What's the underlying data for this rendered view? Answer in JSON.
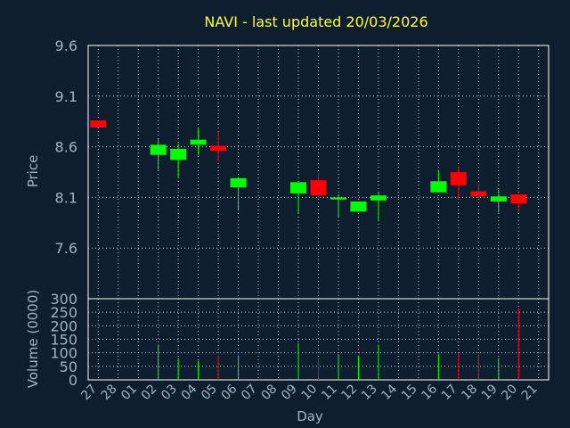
{
  "chart_data": {
    "type": "candlestick",
    "title": "NAVI - last updated 20/03/2026",
    "colors": {
      "background": "#0f1e2e",
      "up": "#00ff00",
      "down": "#ff0000",
      "text": "#9fb3c8",
      "title": "#ffff33",
      "grid": "#ffffff"
    },
    "price_panel": {
      "ylabel": "Price",
      "ylim": [
        7.1,
        9.6
      ],
      "yticks": [
        "9.6",
        "9.1",
        "8.6",
        "8.1",
        "7.6"
      ],
      "ytick_values": [
        9.6,
        9.1,
        8.6,
        8.1,
        7.6
      ],
      "grid": true
    },
    "volume_panel": {
      "ylabel": "Volume (0000)",
      "ylim": [
        0,
        300
      ],
      "yticks": [
        "300",
        "250",
        "200",
        "150",
        "100",
        "50",
        "0"
      ],
      "ytick_values": [
        300,
        250,
        200,
        150,
        100,
        50,
        0
      ],
      "grid": true
    },
    "xlabel": "Day",
    "x": [
      "27",
      "28",
      "01",
      "02",
      "03",
      "04",
      "05",
      "06",
      "07",
      "08",
      "09",
      "10",
      "11",
      "12",
      "13",
      "14",
      "15",
      "16",
      "17",
      "18",
      "19",
      "20",
      "21"
    ],
    "candles": [
      {
        "day": "27",
        "open": 8.86,
        "close": 8.79,
        "high": 8.86,
        "low": 8.79,
        "volume": 0
      },
      {
        "day": "02",
        "open": 8.52,
        "close": 8.62,
        "high": 8.68,
        "low": 8.37,
        "volume": 130
      },
      {
        "day": "03",
        "open": 8.47,
        "close": 8.58,
        "high": 8.63,
        "low": 8.3,
        "volume": 80
      },
      {
        "day": "04",
        "open": 8.62,
        "close": 8.67,
        "high": 8.78,
        "low": 8.52,
        "volume": 70
      },
      {
        "day": "05",
        "open": 8.61,
        "close": 8.56,
        "high": 8.75,
        "low": 8.46,
        "volume": 90
      },
      {
        "day": "06",
        "open": 8.2,
        "close": 8.29,
        "high": 8.29,
        "low": 7.98,
        "volume": 90
      },
      {
        "day": "09",
        "open": 8.14,
        "close": 8.25,
        "high": 8.25,
        "low": 7.94,
        "volume": 135
      },
      {
        "day": "10",
        "open": 8.27,
        "close": 8.12,
        "high": 8.34,
        "low": 8.1,
        "volume": 80
      },
      {
        "day": "11",
        "open": 8.08,
        "close": 8.1,
        "high": 8.13,
        "low": 7.91,
        "volume": 95
      },
      {
        "day": "12",
        "open": 7.96,
        "close": 8.06,
        "high": 8.06,
        "low": 7.96,
        "volume": 90
      },
      {
        "day": "13",
        "open": 8.07,
        "close": 8.12,
        "high": 8.15,
        "low": 7.87,
        "volume": 130
      },
      {
        "day": "16",
        "open": 8.15,
        "close": 8.26,
        "high": 8.37,
        "low": 8.15,
        "volume": 95
      },
      {
        "day": "17",
        "open": 8.35,
        "close": 8.22,
        "high": 8.4,
        "low": 8.08,
        "volume": 100
      },
      {
        "day": "18",
        "open": 8.16,
        "close": 8.11,
        "high": 8.23,
        "low": 8.09,
        "volume": 95
      },
      {
        "day": "19",
        "open": 8.06,
        "close": 8.11,
        "high": 8.17,
        "low": 7.95,
        "volume": 80
      },
      {
        "day": "20",
        "open": 8.13,
        "close": 8.04,
        "high": 8.13,
        "low": 7.99,
        "volume": 265
      }
    ]
  }
}
